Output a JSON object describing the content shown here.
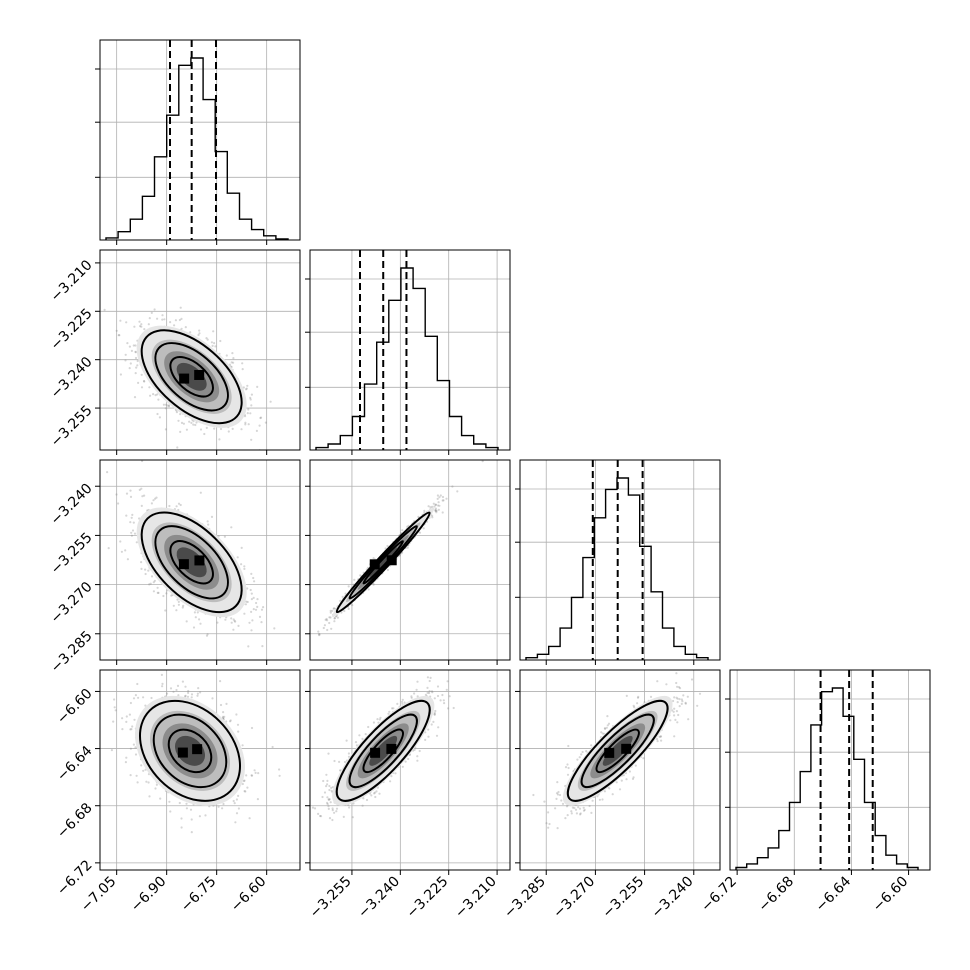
{
  "chart_data": {
    "type": "corner",
    "parameters": 4,
    "colors": {
      "line": "#000000",
      "grid": "#b0b0b0",
      "points": "#555555"
    },
    "grid": true,
    "tick_labels": {
      "p0": [
        "−7.05",
        "−6.90",
        "−6.75",
        "−6.60"
      ],
      "p1": [
        "−3.255",
        "−3.240",
        "−3.225",
        "−3.210"
      ],
      "p2": [
        "−3.285",
        "−3.270",
        "−3.255",
        "−3.240"
      ],
      "p3": [
        "−6.72",
        "−6.68",
        "−6.64",
        "−6.60"
      ]
    },
    "axes": {
      "p0": {
        "ticks": [
          -7.05,
          -6.9,
          -6.75,
          -6.6
        ],
        "range": [
          -7.1,
          -6.5
        ]
      },
      "p1": {
        "ticks": [
          -3.255,
          -3.24,
          -3.225,
          -3.21
        ],
        "range": [
          -3.268,
          -3.206
        ]
      },
      "p2": {
        "ticks": [
          -3.285,
          -3.27,
          -3.255,
          -3.24
        ],
        "range": [
          -3.293,
          -3.232
        ]
      },
      "p3": {
        "ticks": [
          -6.72,
          -6.68,
          -6.64,
          -6.6
        ],
        "range": [
          -6.725,
          -6.585
        ]
      }
    },
    "histograms": [
      {
        "param": "p0",
        "counts": [
          2,
          8,
          20,
          42,
          80,
          120,
          168,
          175,
          135,
          85,
          45,
          20,
          10,
          4,
          1
        ],
        "quantiles": [
          -6.89,
          -6.825,
          -6.752
        ]
      },
      {
        "param": "p1",
        "counts": [
          2,
          5,
          12,
          28,
          55,
          90,
          125,
          152,
          135,
          95,
          58,
          28,
          12,
          5,
          2
        ],
        "quantiles": [
          -3.2525,
          -3.2453,
          -3.2381
        ]
      },
      {
        "param": "p2",
        "counts": [
          2,
          5,
          12,
          28,
          55,
          90,
          125,
          150,
          160,
          145,
          100,
          60,
          28,
          12,
          5,
          2
        ],
        "quantiles": [
          -3.2708,
          -3.2632,
          -3.2556
        ]
      },
      {
        "param": "p3",
        "counts": [
          2,
          5,
          10,
          18,
          32,
          55,
          80,
          118,
          145,
          148,
          125,
          90,
          55,
          28,
          12,
          5,
          2
        ],
        "quantiles": [
          -6.6616,
          -6.6416,
          -6.6251
        ]
      }
    ],
    "pairs": [
      {
        "x": "p0",
        "y": "p1",
        "mean": [
          -6.825,
          -3.2453
        ],
        "sd": [
          0.075,
          0.0072
        ],
        "rho": -0.55
      },
      {
        "x": "p0",
        "y": "p2",
        "mean": [
          -6.825,
          -3.2632
        ],
        "sd": [
          0.075,
          0.0076
        ],
        "rho": -0.55
      },
      {
        "x": "p1",
        "y": "p2",
        "mean": [
          -3.2453,
          -3.2632
        ],
        "sd": [
          0.0072,
          0.0076
        ],
        "rho": 0.985
      },
      {
        "x": "p0",
        "y": "p3",
        "mean": [
          -6.83,
          -6.6416
        ],
        "sd": [
          0.075,
          0.0175
        ],
        "rho": -0.3
      },
      {
        "x": "p1",
        "y": "p3",
        "mean": [
          -3.2453,
          -6.6416
        ],
        "sd": [
          0.0072,
          0.0175
        ],
        "rho": 0.82
      },
      {
        "x": "p2",
        "y": "p3",
        "mean": [
          -3.2632,
          -6.6416
        ],
        "sd": [
          0.0076,
          0.0175
        ],
        "rho": 0.85
      }
    ]
  }
}
